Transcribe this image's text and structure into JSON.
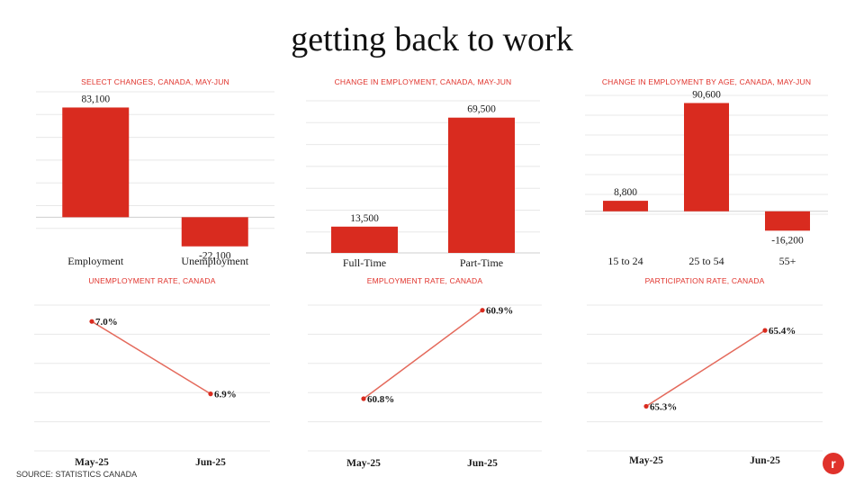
{
  "page": {
    "title": "getting back to work",
    "source": "SOURCE: STATISTICS CANADA",
    "logo_letter": "r"
  },
  "chart_data": [
    {
      "type": "bar",
      "title": "SELECT CHANGES, CANADA, MAY-JUN",
      "categories": [
        "Employment",
        "Unemployment"
      ],
      "values": [
        83100,
        -22100
      ],
      "labels": [
        "83,100",
        "-22,100"
      ],
      "ylim": [
        -25000,
        95000
      ],
      "grid": true
    },
    {
      "type": "bar",
      "title": "CHANGE IN EMPLOYMENT, CANADA, MAY-JUN",
      "categories": [
        "Full-Time",
        "Part-Time"
      ],
      "values": [
        13500,
        69500
      ],
      "labels": [
        "13,500",
        "69,500"
      ],
      "ylim": [
        0,
        80000
      ],
      "grid": true
    },
    {
      "type": "bar",
      "title": "CHANGE IN EMPLOYMENT BY AGE, CANADA, MAY-JUN",
      "categories": [
        "15 to 24",
        "25 to 54",
        "55+"
      ],
      "values": [
        8800,
        90600,
        -16200
      ],
      "labels": [
        "8,800",
        "90,600",
        "-16,200"
      ],
      "ylim": [
        -25000,
        100000
      ],
      "grid": true
    },
    {
      "type": "line",
      "title": "UNEMPLOYMENT RATE, CANADA",
      "x": [
        "May-25",
        "Jun-25"
      ],
      "values": [
        7.0,
        6.9
      ],
      "labels": [
        "7.0%",
        "6.9%"
      ],
      "ylim": [
        6.82,
        7.04
      ],
      "grid": true
    },
    {
      "type": "line",
      "title": "EMPLOYMENT RATE, CANADA",
      "x": [
        "May-25",
        "Jun-25"
      ],
      "values": [
        60.8,
        60.9
      ],
      "labels": [
        "60.8%",
        "60.9%"
      ],
      "ylim": [
        60.74,
        60.92
      ],
      "grid": true
    },
    {
      "type": "line",
      "title": "PARTICIPATION RATE, CANADA",
      "x": [
        "May-25",
        "Jun-25"
      ],
      "values": [
        65.3,
        65.4
      ],
      "labels": [
        "65.3%",
        "65.4%"
      ],
      "ylim": [
        65.24,
        65.45
      ],
      "grid": true
    }
  ],
  "colors": {
    "accent": "#e0322b",
    "bar": "#d92b1f",
    "line": "#e46a5c",
    "grid": "#e8e8e8",
    "text": "#1a1a1a"
  }
}
